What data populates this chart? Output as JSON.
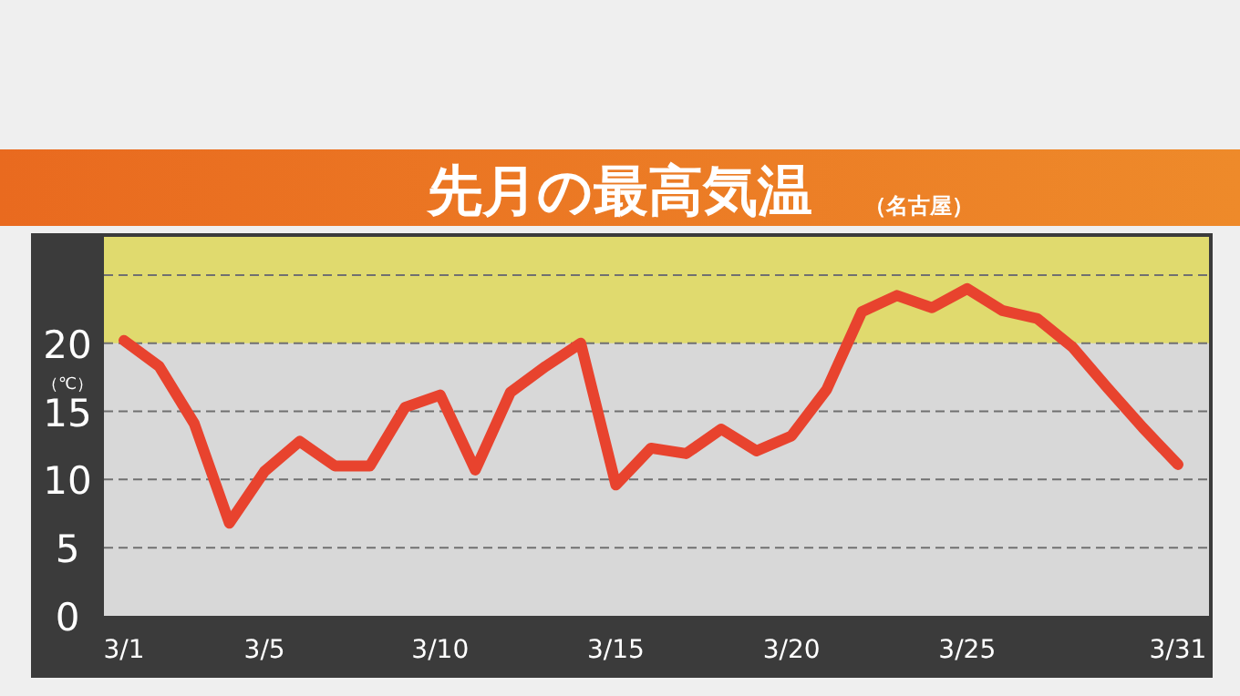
{
  "chart_data": {
    "type": "line",
    "title": "先月の最高気温",
    "subtitle": "（名古屋）",
    "ylabel": "（℃）",
    "categories": [
      "3/1",
      null,
      null,
      null,
      "3/5",
      null,
      null,
      null,
      null,
      "3/10",
      null,
      null,
      null,
      null,
      "3/15",
      null,
      null,
      null,
      null,
      "3/20",
      null,
      null,
      null,
      null,
      "3/25",
      null,
      null,
      null,
      null,
      null,
      "3/31"
    ],
    "series": [
      {
        "color": "#e8432e",
        "values": [
          20.2,
          18.3,
          14.1,
          6.8,
          10.6,
          12.8,
          11.0,
          11.0,
          15.3,
          16.2,
          10.7,
          16.4,
          18.3,
          20.0,
          9.6,
          12.3,
          11.9,
          13.7,
          12.1,
          13.2,
          16.6,
          22.3,
          23.5,
          22.6,
          24.0,
          22.4,
          21.8,
          19.7,
          16.7,
          13.8,
          11.1
        ]
      }
    ],
    "ylim": [
      0,
      27.8
    ],
    "yticks": [
      0,
      5,
      10,
      15,
      20,
      {
        "value": 25,
        "label": null
      }
    ],
    "bands": [
      {
        "axis": "y",
        "from": 20,
        "to": 27.8,
        "color": "#e0da6e"
      }
    ],
    "grid": "y",
    "marker": "none",
    "line_style": "solid"
  }
}
